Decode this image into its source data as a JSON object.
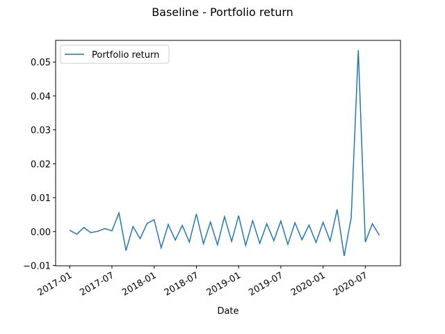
{
  "chart_data": {
    "type": "line",
    "title": "Baseline - Portfolio return",
    "x_label": "Date",
    "x": [
      "2017-01",
      "2017-02",
      "2017-03",
      "2017-04",
      "2017-05",
      "2017-06",
      "2017-07",
      "2017-08",
      "2017-09",
      "2017-10",
      "2017-11",
      "2017-12",
      "2018-01",
      "2018-02",
      "2018-03",
      "2018-04",
      "2018-05",
      "2018-06",
      "2018-07",
      "2018-08",
      "2018-09",
      "2018-10",
      "2018-11",
      "2018-12",
      "2019-01",
      "2019-02",
      "2019-03",
      "2019-04",
      "2019-05",
      "2019-06",
      "2019-07",
      "2019-08",
      "2019-09",
      "2019-10",
      "2019-11",
      "2019-12",
      "2020-01",
      "2020-02",
      "2020-03",
      "2020-04",
      "2020-05",
      "2020-06",
      "2020-07",
      "2020-08",
      "2020-09"
    ],
    "series": [
      {
        "name": "Portfolio return",
        "color": "#1f77b4",
        "values": [
          0.0004,
          -0.0008,
          0.0012,
          -0.0003,
          0.0001,
          0.0009,
          0.0002,
          0.0055,
          -0.0056,
          0.0015,
          -0.0021,
          0.0024,
          0.0035,
          -0.0048,
          0.0021,
          -0.0025,
          0.0018,
          -0.0031,
          0.0052,
          -0.0036,
          0.0028,
          -0.0039,
          0.0044,
          -0.0029,
          0.0047,
          -0.0041,
          0.0032,
          -0.0035,
          0.0023,
          -0.0027,
          0.0031,
          -0.0038,
          0.0026,
          -0.0024,
          0.0019,
          -0.0032,
          0.0027,
          -0.0028,
          0.0065,
          -0.0072,
          0.0041,
          0.0535,
          -0.0031,
          0.0023,
          -0.0011
        ]
      }
    ],
    "xlim": [
      "2016-11",
      "2020-12"
    ],
    "xticks": [
      "2017-01",
      "2017-07",
      "2018-01",
      "2018-07",
      "2019-01",
      "2019-07",
      "2020-01",
      "2020-07"
    ],
    "ylim": [
      -0.0101,
      0.0564
    ],
    "yticks": [
      {
        "value": -0.01,
        "label": "−0.01"
      },
      {
        "value": 0,
        "label": "0.00"
      },
      0.01,
      0.02,
      0.03,
      0.04,
      0.05
    ],
    "legend": "upper left"
  }
}
